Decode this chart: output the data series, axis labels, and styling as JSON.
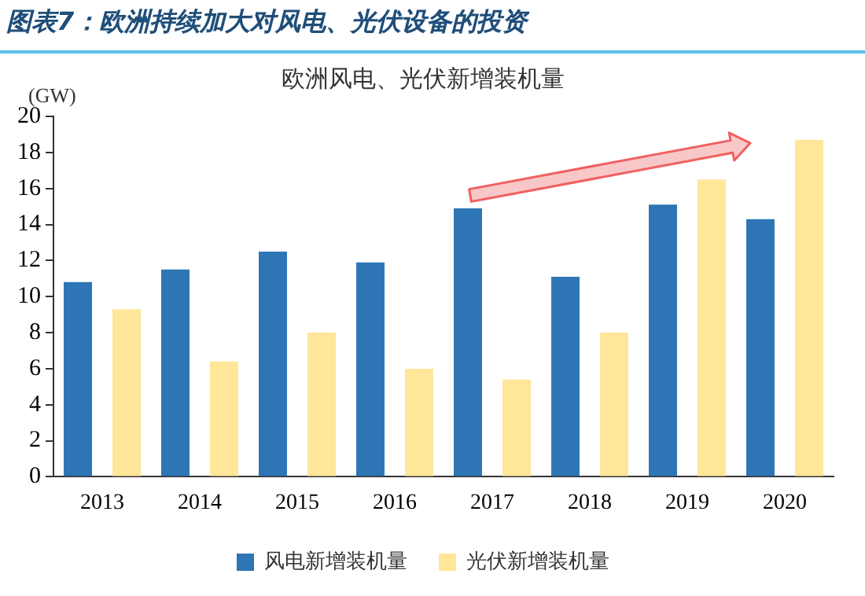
{
  "chart_data": {
    "type": "bar",
    "title": "图表7：欧洲持续加大对风电、光伏设备的投资",
    "subtitle": "欧洲风电、光伏新增装机量",
    "ylabel": "(GW)",
    "categories": [
      "2013",
      "2014",
      "2015",
      "2016",
      "2017",
      "2018",
      "2019",
      "2020"
    ],
    "series": [
      {
        "name": "风电新增装机量",
        "color": "#2e75b6",
        "values": [
          10.8,
          11.5,
          12.5,
          11.9,
          14.9,
          11.1,
          15.1,
          14.3
        ]
      },
      {
        "name": "光伏新增装机量",
        "color": "#ffe699",
        "values": [
          9.3,
          6.4,
          8.0,
          6.0,
          5.4,
          8.0,
          16.5,
          18.7
        ]
      }
    ],
    "ylim": [
      0,
      20
    ],
    "yticks": [
      0,
      2,
      4,
      6,
      8,
      10,
      12,
      14,
      16,
      18,
      20
    ],
    "grid": false,
    "legend": "bottom"
  }
}
